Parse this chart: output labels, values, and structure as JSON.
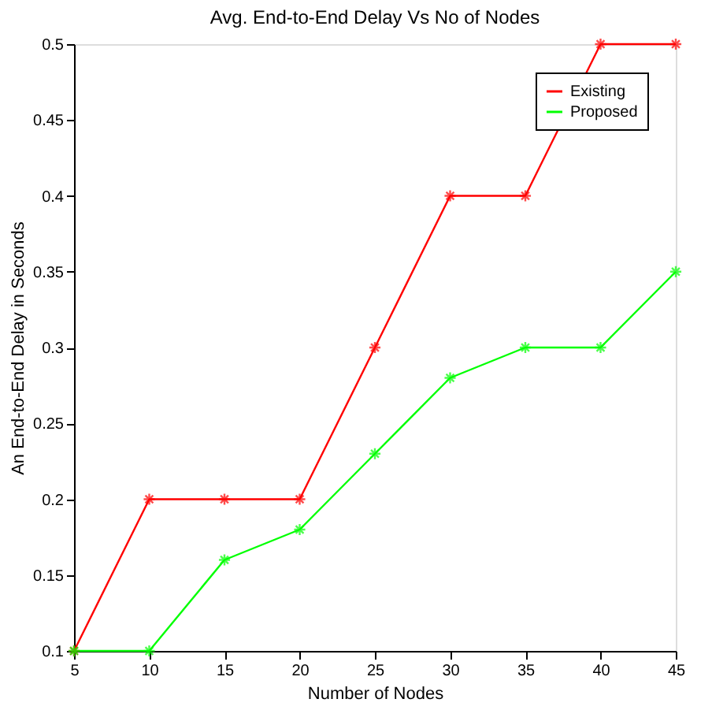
{
  "chart_data": {
    "type": "line",
    "title": "Avg. End-to-End Delay Vs No of Nodes",
    "xlabel": "Number of Nodes",
    "ylabel": "An End-to-End Delay in Seconds",
    "x": [
      5,
      10,
      15,
      20,
      25,
      30,
      35,
      40,
      45
    ],
    "series": [
      {
        "name": "Existing",
        "color": "#ff0000",
        "values": [
          0.1,
          0.2,
          0.2,
          0.2,
          0.3,
          0.4,
          0.4,
          0.5,
          0.5
        ]
      },
      {
        "name": "Proposed",
        "color": "#00ff00",
        "values": [
          0.1,
          0.1,
          0.16,
          0.18,
          0.23,
          0.28,
          0.3,
          0.3,
          0.35
        ]
      }
    ],
    "xlim": [
      5,
      45
    ],
    "xticks": [
      5,
      10,
      15,
      20,
      25,
      30,
      35,
      40,
      45
    ],
    "ylim": [
      0.1,
      0.5
    ],
    "yticks": [
      0.1,
      0.15,
      0.2,
      0.25,
      0.3,
      0.35,
      0.4,
      0.45,
      0.5
    ],
    "grid": false,
    "legend": "top right",
    "marker": "cross",
    "line_style": "solid"
  }
}
